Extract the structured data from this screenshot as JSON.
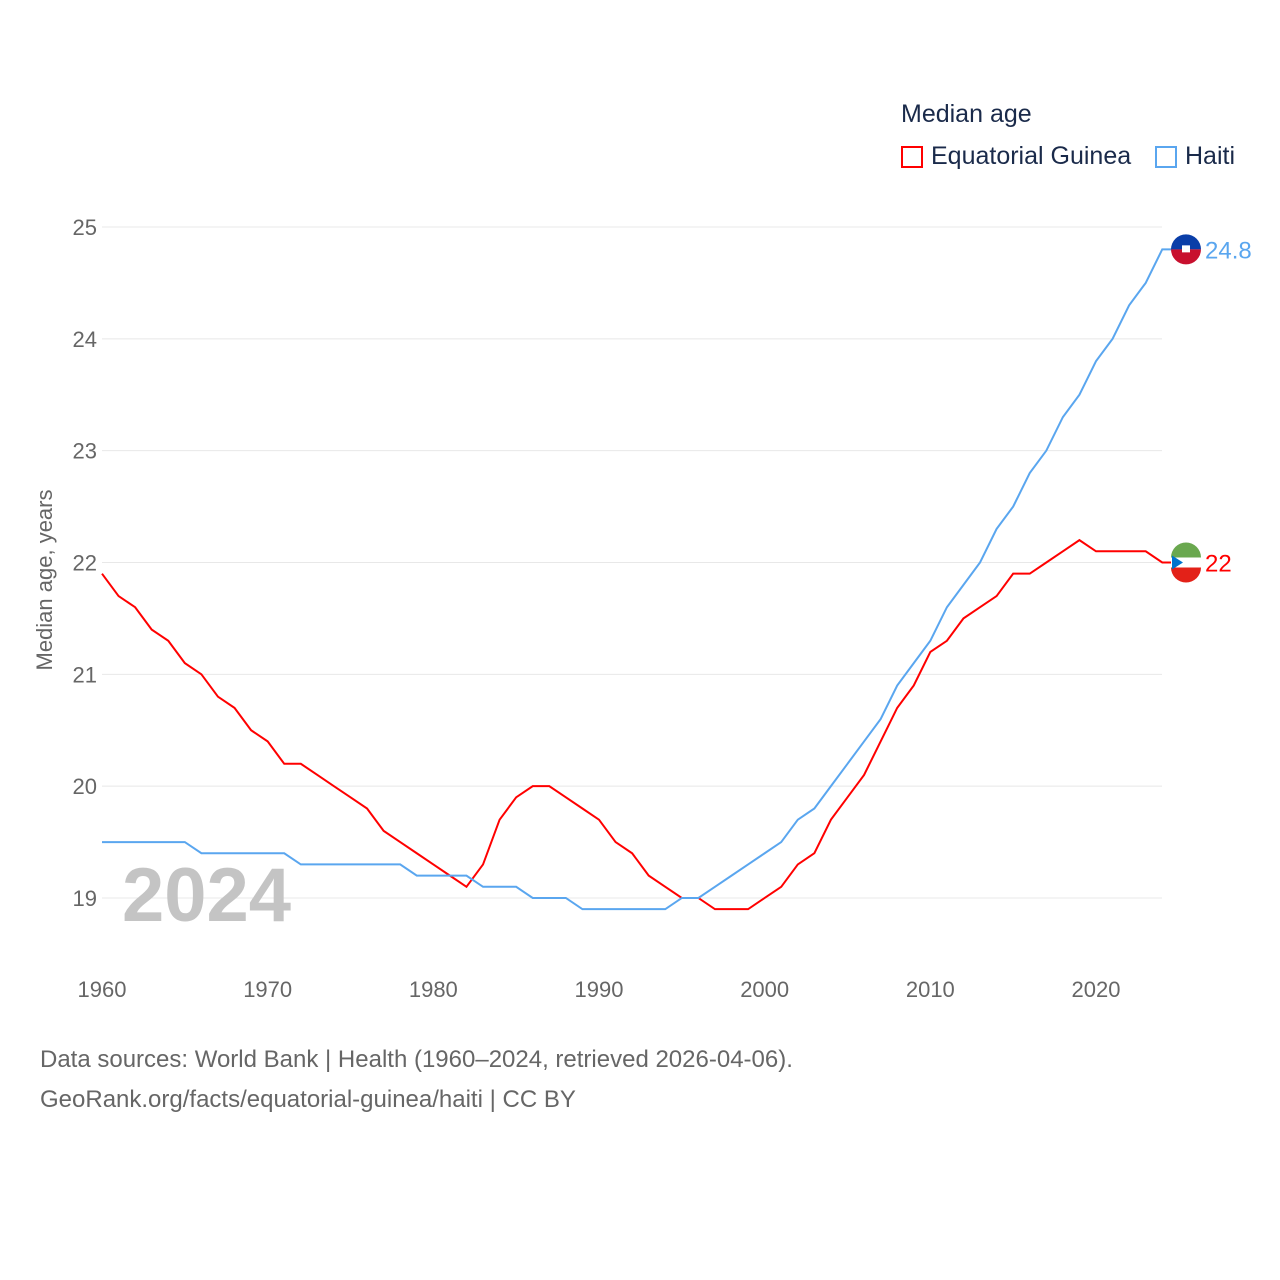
{
  "chart_data": {
    "type": "line",
    "title": "Median age",
    "ylabel": "Median age, years",
    "xlabel": "",
    "xlim": [
      1960,
      2024
    ],
    "ylim": [
      18.6,
      25.2
    ],
    "x_ticks": [
      "1960",
      "1970",
      "1980",
      "1990",
      "2000",
      "2010",
      "2020"
    ],
    "y_ticks": [
      "19",
      "20",
      "21",
      "22",
      "23",
      "24",
      "25"
    ],
    "watermark_year": "2024",
    "legend_placement": "top-right",
    "x": [
      1960,
      1961,
      1962,
      1963,
      1964,
      1965,
      1966,
      1967,
      1968,
      1969,
      1970,
      1971,
      1972,
      1973,
      1974,
      1975,
      1976,
      1977,
      1978,
      1979,
      1980,
      1981,
      1982,
      1983,
      1984,
      1985,
      1986,
      1987,
      1988,
      1989,
      1990,
      1991,
      1992,
      1993,
      1994,
      1995,
      1996,
      1997,
      1998,
      1999,
      2000,
      2001,
      2002,
      2003,
      2004,
      2005,
      2006,
      2007,
      2008,
      2009,
      2010,
      2011,
      2012,
      2013,
      2014,
      2015,
      2016,
      2017,
      2018,
      2019,
      2020,
      2021,
      2022,
      2023,
      2024
    ],
    "series": [
      {
        "name": "Equatorial Guinea",
        "color": "#ff0000",
        "end_label": "22",
        "values": [
          21.9,
          21.7,
          21.6,
          21.4,
          21.3,
          21.1,
          21.0,
          20.8,
          20.7,
          20.5,
          20.4,
          20.2,
          20.2,
          20.1,
          20.0,
          19.9,
          19.8,
          19.6,
          19.5,
          19.4,
          19.3,
          19.2,
          19.1,
          19.3,
          19.7,
          19.9,
          20.0,
          20.0,
          19.9,
          19.8,
          19.7,
          19.5,
          19.4,
          19.2,
          19.1,
          19.0,
          19.0,
          18.9,
          18.9,
          18.9,
          19.0,
          19.1,
          19.3,
          19.4,
          19.7,
          19.9,
          20.1,
          20.4,
          20.7,
          20.9,
          21.2,
          21.3,
          21.5,
          21.6,
          21.7,
          21.9,
          21.9,
          22.0,
          22.1,
          22.2,
          22.1,
          22.1,
          22.1,
          22.1,
          22.0
        ]
      },
      {
        "name": "Haiti",
        "color": "#5aa6ef",
        "end_label": "24.8",
        "values": [
          19.5,
          19.5,
          19.5,
          19.5,
          19.5,
          19.5,
          19.4,
          19.4,
          19.4,
          19.4,
          19.4,
          19.4,
          19.3,
          19.3,
          19.3,
          19.3,
          19.3,
          19.3,
          19.3,
          19.2,
          19.2,
          19.2,
          19.2,
          19.1,
          19.1,
          19.1,
          19.0,
          19.0,
          19.0,
          18.9,
          18.9,
          18.9,
          18.9,
          18.9,
          18.9,
          19.0,
          19.0,
          19.1,
          19.2,
          19.3,
          19.4,
          19.5,
          19.7,
          19.8,
          20.0,
          20.2,
          20.4,
          20.6,
          20.9,
          21.1,
          21.3,
          21.6,
          21.8,
          22.0,
          22.3,
          22.5,
          22.8,
          23.0,
          23.3,
          23.5,
          23.8,
          24.0,
          24.3,
          24.5,
          24.8
        ]
      }
    ]
  },
  "footer": {
    "line1": "Data sources: World Bank | Health (1960–2024, retrieved 2026-04-06).",
    "line2": "GeoRank.org/facts/equatorial-guinea/haiti | CC BY"
  }
}
